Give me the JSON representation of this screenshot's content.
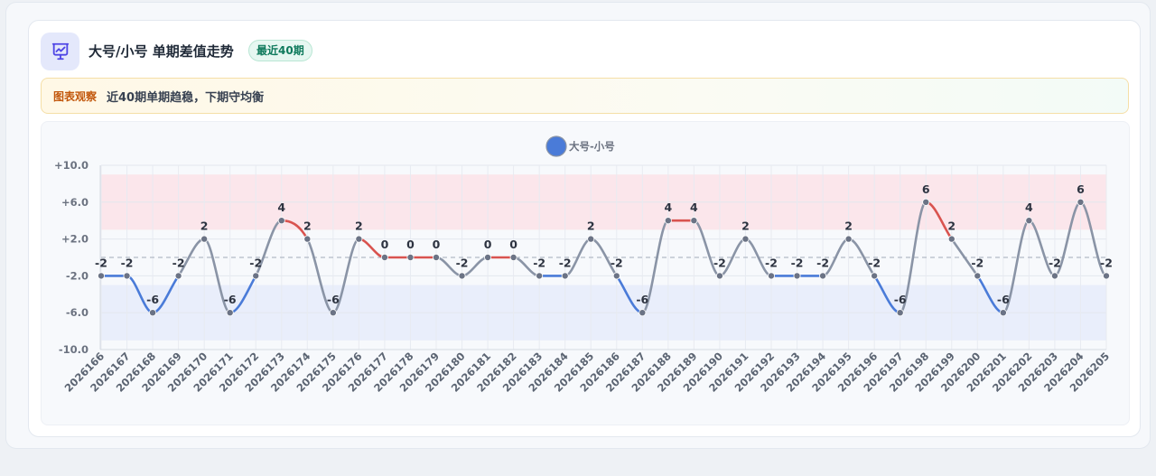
{
  "header": {
    "title": "大号/小号 单期差值走势",
    "badge": "最近40期",
    "icon": "chart-presentation-icon"
  },
  "note": {
    "label": "图表观察",
    "text": "近40期单期趋稳，下期守均衡"
  },
  "colors": {
    "up": "#d9534f",
    "down": "#4a7bd8",
    "neutral": "#8a94a6",
    "legend": "#4a7bd8",
    "upper_band": "#fbe3e7",
    "lower_band": "#e6ecfa"
  },
  "chart_data": {
    "type": "line",
    "legend": [
      "大号-小号"
    ],
    "series": [
      {
        "name": "大号-小号",
        "values": [
          -2,
          -2,
          -6,
          -2,
          2,
          -6,
          -2,
          4,
          2,
          -6,
          2,
          0,
          0,
          0,
          -2,
          0,
          0,
          -2,
          -2,
          2,
          -2,
          -6,
          4,
          4,
          -2,
          2,
          -2,
          -2,
          -2,
          2,
          -2,
          -6,
          6,
          2,
          -2,
          -6,
          4,
          -2,
          6,
          -2
        ]
      }
    ],
    "categories": [
      "2026166",
      "2026167",
      "2026168",
      "2026169",
      "2026170",
      "2026171",
      "2026172",
      "2026173",
      "2026174",
      "2026175",
      "2026176",
      "2026177",
      "2026178",
      "2026179",
      "2026180",
      "2026181",
      "2026182",
      "2026183",
      "2026184",
      "2026185",
      "2026186",
      "2026187",
      "2026188",
      "2026189",
      "2026190",
      "2026191",
      "2026192",
      "2026193",
      "2026194",
      "2026195",
      "2026196",
      "2026197",
      "2026198",
      "2026199",
      "2026200",
      "2026201",
      "2026202",
      "2026203",
      "2026204",
      "2026205"
    ],
    "data_labels": [
      "-2",
      "-2",
      "-6",
      "-2",
      "2",
      "-6",
      "-2",
      "4",
      "2",
      "-6",
      "2",
      "0",
      "0",
      "0",
      "-2",
      "0",
      "0",
      "-2",
      "-2",
      "2",
      "-2",
      "-6",
      "4",
      "4",
      "-2",
      "2",
      "-2",
      "-2",
      "-2",
      "2",
      "-2",
      "-6",
      "6",
      "2",
      "-2",
      "-6",
      "4",
      "-2",
      "6",
      "-2"
    ],
    "ylim": [
      -10,
      10
    ],
    "yticks": [
      10,
      6,
      2,
      -2,
      -6,
      -10
    ],
    "ytick_labels": [
      "+10.0",
      "+6.0",
      "+2.0",
      "-2.0",
      "-6.0",
      "-10.0"
    ],
    "bands": [
      {
        "name": "upper",
        "from": 3,
        "to": 9
      },
      {
        "name": "lower",
        "from": -9,
        "to": -3
      }
    ],
    "reference_line": 0,
    "grid": true,
    "legend_position": "top-center"
  }
}
